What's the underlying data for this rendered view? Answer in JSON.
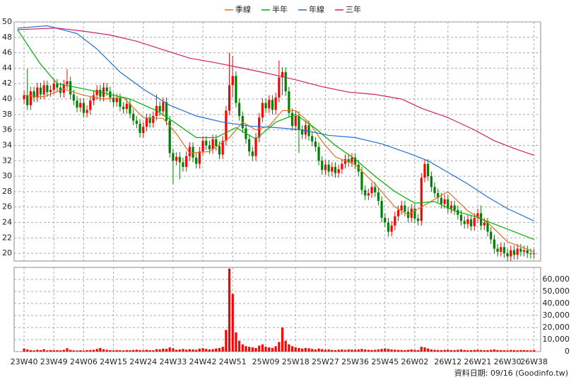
{
  "chart_data": {
    "type": "candlestick",
    "xlim": [
      -3,
      156
    ],
    "xticks": [
      {
        "value": 0,
        "label": "23W40"
      },
      {
        "value": 9,
        "label": "23W49"
      },
      {
        "value": 18,
        "label": "24W06"
      },
      {
        "value": 27,
        "label": "24W15"
      },
      {
        "value": 36,
        "label": "24W24"
      },
      {
        "value": 45,
        "label": "24W33"
      },
      {
        "value": 54,
        "label": "24W42"
      },
      {
        "value": 63,
        "label": "24W51"
      },
      {
        "value": 73,
        "label": "25W09"
      },
      {
        "value": 82,
        "label": "25W18"
      },
      {
        "value": 91,
        "label": "25W27"
      },
      {
        "value": 100,
        "label": "25W36"
      },
      {
        "value": 109,
        "label": "25W45"
      },
      {
        "value": 118,
        "label": "26W02"
      },
      {
        "value": 128,
        "label": "26W12"
      },
      {
        "value": 137,
        "label": "26W21"
      },
      {
        "value": 146,
        "label": "26W30"
      },
      {
        "value": 154,
        "label": "26W38"
      }
    ],
    "ylim": [
      19,
      50
    ],
    "yticks": [
      20,
      22,
      24,
      26,
      28,
      30,
      32,
      34,
      36,
      38,
      40,
      42,
      44,
      46,
      48,
      50
    ],
    "grid": true,
    "up_color": "#ff0000",
    "down_color": "#008000",
    "x": [
      0,
      1,
      2,
      3,
      4,
      5,
      6,
      7,
      8,
      9,
      10,
      11,
      12,
      13,
      14,
      15,
      16,
      17,
      18,
      19,
      20,
      21,
      22,
      23,
      24,
      25,
      26,
      27,
      28,
      29,
      30,
      31,
      32,
      33,
      34,
      35,
      36,
      37,
      38,
      39,
      40,
      41,
      42,
      43,
      44,
      45,
      46,
      47,
      48,
      49,
      50,
      51,
      52,
      53,
      54,
      55,
      56,
      57,
      58,
      59,
      60,
      61,
      62,
      63,
      64,
      65,
      66,
      67,
      68,
      69,
      70,
      71,
      72,
      73,
      74,
      75,
      76,
      77,
      78,
      79,
      80,
      81,
      82,
      83,
      84,
      85,
      86,
      87,
      88,
      89,
      90,
      91,
      92,
      93,
      94,
      95,
      96,
      97,
      98,
      99,
      100,
      101,
      102,
      103,
      104,
      105,
      106,
      107,
      108,
      109,
      110,
      111,
      112,
      113,
      114,
      115,
      116,
      117,
      118,
      119,
      120,
      121,
      122,
      123,
      124,
      125,
      126,
      127,
      128,
      129,
      130,
      131,
      132,
      133,
      134,
      135,
      136,
      137,
      138,
      139,
      140,
      141,
      142,
      143,
      144,
      145,
      146,
      147,
      148,
      149,
      150,
      151,
      152,
      153,
      154
    ],
    "open": [
      40.0,
      40.5,
      39.2,
      41.0,
      40.2,
      41.5,
      40.6,
      41.8,
      40.9,
      41.2,
      42.0,
      41.5,
      40.8,
      41.9,
      42.3,
      40.6,
      39.8,
      38.9,
      39.5,
      38.2,
      38.6,
      39.8,
      40.5,
      41.2,
      40.3,
      41.5,
      41.0,
      40.2,
      39.6,
      40.1,
      39.0,
      38.7,
      39.4,
      38.1,
      37.2,
      36.8,
      35.6,
      36.4,
      37.5,
      36.9,
      37.8,
      39.1,
      38.4,
      39.6,
      37.2,
      33.0,
      32.0,
      32.5,
      31.8,
      31.2,
      32.6,
      33.8,
      32.4,
      31.6,
      33.2,
      34.6,
      34.0,
      33.5,
      34.8,
      33.9,
      32.8,
      34.6,
      38.5,
      41.8,
      43.0,
      39.5,
      37.8,
      36.2,
      34.8,
      33.2,
      32.6,
      35.0,
      37.6,
      39.5,
      38.8,
      39.9,
      38.6,
      40.2,
      42.8,
      43.5,
      41.0,
      38.2,
      36.5,
      37.8,
      36.0,
      35.4,
      36.6,
      35.2,
      34.5,
      33.8,
      32.0,
      30.8,
      31.5,
      30.6,
      31.2,
      30.4,
      30.9,
      31.6,
      32.2,
      31.8,
      32.4,
      31.5,
      30.6,
      28.2,
      27.5,
      27.8,
      28.6,
      27.9,
      26.8,
      24.6,
      24.0,
      22.8,
      23.6,
      24.8,
      25.6,
      26.2,
      25.4,
      24.6,
      25.8,
      24.5,
      24.2,
      29.8,
      31.6,
      30.0,
      28.6,
      27.8,
      27.2,
      26.4,
      27.0,
      25.8,
      26.2,
      25.6,
      25.0,
      24.2,
      23.8,
      24.4,
      23.5,
      24.6,
      25.2,
      23.6,
      24.0,
      22.8,
      21.8,
      20.6,
      20.2,
      20.8,
      20.0,
      19.6,
      20.4,
      19.8,
      20.6,
      20.2,
      20.4,
      20.0,
      19.9
    ],
    "high": [
      41.1,
      43.9,
      41.6,
      41.6,
      42.1,
      42.1,
      42.4,
      42.4,
      41.8,
      42.6,
      42.6,
      42.1,
      42.5,
      43.9,
      42.9,
      41.2,
      40.4,
      40.1,
      40.1,
      39.2,
      40.4,
      41.1,
      41.8,
      41.8,
      42.1,
      42.1,
      41.6,
      40.8,
      40.7,
      40.7,
      39.6,
      40.0,
      40.0,
      38.7,
      37.8,
      37.4,
      37.0,
      38.1,
      38.1,
      38.4,
      40.6,
      39.7,
      40.2,
      40.2,
      37.8,
      33.6,
      33.1,
      33.1,
      32.4,
      33.2,
      34.4,
      34.4,
      33.0,
      33.8,
      35.2,
      35.2,
      34.6,
      35.4,
      35.4,
      34.5,
      35.2,
      39.1,
      46.0,
      45.6,
      43.6,
      40.1,
      38.4,
      36.8,
      35.4,
      33.8,
      35.6,
      38.2,
      40.1,
      40.1,
      40.5,
      40.5,
      40.8,
      45.0,
      44.1,
      44.1,
      41.6,
      38.8,
      38.4,
      38.4,
      36.6,
      37.2,
      37.2,
      35.8,
      35.1,
      34.4,
      32.6,
      32.1,
      32.1,
      31.8,
      31.8,
      31.5,
      32.2,
      32.8,
      32.8,
      33.0,
      33.0,
      32.1,
      31.2,
      28.8,
      28.4,
      29.2,
      29.2,
      28.5,
      27.4,
      25.2,
      24.6,
      24.2,
      25.4,
      26.2,
      26.8,
      26.8,
      26.0,
      26.4,
      26.4,
      25.1,
      30.4,
      32.2,
      32.2,
      30.6,
      29.2,
      28.4,
      27.8,
      27.6,
      27.6,
      26.8,
      26.8,
      26.2,
      25.6,
      24.8,
      25.0,
      25.0,
      25.2,
      25.8,
      26.2,
      24.6,
      24.6,
      23.4,
      22.4,
      21.2,
      21.4,
      21.4,
      20.6,
      21.0,
      21.0,
      21.2,
      21.2,
      21.0,
      21.0,
      20.6,
      20.6
    ],
    "low": [
      39.4,
      38.6,
      38.6,
      39.6,
      39.6,
      40.0,
      40.0,
      40.3,
      40.3,
      40.6,
      40.9,
      40.2,
      40.2,
      41.3,
      40.0,
      39.2,
      38.3,
      38.3,
      37.6,
      37.6,
      38.0,
      39.2,
      39.9,
      39.7,
      39.7,
      40.4,
      39.6,
      39.0,
      39.0,
      38.4,
      38.1,
      38.1,
      37.5,
      36.6,
      36.2,
      35.0,
      35.0,
      35.8,
      36.3,
      36.3,
      37.2,
      37.8,
      37.8,
      36.6,
      32.4,
      29.0,
      31.4,
      29.6,
      30.6,
      30.6,
      32.0,
      31.8,
      31.0,
      31.0,
      32.6,
      33.4,
      32.9,
      32.9,
      33.3,
      32.2,
      32.2,
      34.0,
      37.9,
      40.2,
      38.9,
      37.2,
      35.6,
      34.2,
      32.6,
      32.0,
      32.0,
      34.4,
      37.0,
      38.2,
      38.2,
      38.0,
      38.0,
      39.6,
      40.5,
      40.4,
      37.6,
      35.9,
      35.9,
      33.0,
      34.8,
      34.8,
      34.6,
      33.9,
      33.2,
      31.4,
      30.2,
      30.2,
      30.0,
      30.0,
      29.8,
      29.8,
      30.3,
      31.0,
      31.2,
      31.2,
      30.9,
      30.0,
      27.6,
      26.9,
      26.9,
      27.2,
      27.3,
      26.2,
      24.0,
      23.4,
      22.2,
      22.2,
      23.0,
      24.2,
      25.0,
      24.8,
      24.0,
      24.0,
      23.9,
      23.6,
      23.6,
      29.2,
      29.4,
      28.0,
      27.2,
      26.6,
      25.8,
      25.8,
      25.2,
      25.2,
      25.0,
      24.4,
      23.6,
      23.2,
      23.2,
      22.9,
      22.9,
      24.0,
      23.0,
      23.0,
      22.2,
      21.2,
      20.0,
      19.6,
      19.6,
      19.4,
      19.0,
      19.0,
      19.2,
      19.2,
      19.6,
      19.6,
      19.4,
      19.3,
      19.3
    ],
    "close": [
      40.5,
      39.2,
      41.0,
      40.2,
      41.5,
      40.6,
      41.8,
      40.9,
      41.2,
      42.0,
      41.5,
      40.8,
      41.9,
      42.3,
      40.6,
      39.8,
      38.9,
      39.5,
      38.2,
      38.6,
      39.8,
      40.5,
      41.2,
      40.3,
      41.5,
      41.0,
      40.2,
      39.6,
      40.1,
      39.0,
      38.7,
      39.4,
      38.1,
      37.2,
      36.8,
      35.6,
      36.4,
      37.5,
      36.9,
      37.8,
      39.1,
      38.4,
      39.6,
      37.2,
      33.0,
      32.0,
      32.5,
      31.8,
      31.2,
      32.6,
      33.8,
      32.4,
      31.6,
      33.2,
      34.6,
      34.0,
      33.5,
      34.8,
      33.9,
      32.8,
      34.6,
      38.5,
      41.8,
      43.0,
      39.5,
      37.8,
      36.2,
      34.8,
      33.2,
      32.6,
      35.0,
      37.6,
      39.5,
      38.8,
      39.9,
      38.6,
      40.2,
      42.8,
      43.5,
      41.0,
      38.2,
      36.5,
      37.8,
      36.0,
      35.4,
      36.6,
      35.2,
      34.5,
      33.8,
      32.0,
      30.8,
      31.5,
      30.6,
      31.2,
      30.4,
      30.9,
      31.6,
      32.2,
      31.8,
      32.4,
      31.5,
      30.6,
      28.2,
      27.5,
      27.8,
      28.6,
      27.9,
      26.8,
      24.6,
      24.0,
      22.8,
      23.6,
      24.8,
      25.6,
      26.2,
      25.4,
      24.6,
      25.8,
      24.5,
      24.2,
      29.8,
      31.6,
      30.0,
      28.6,
      27.8,
      27.2,
      26.4,
      27.0,
      25.8,
      26.2,
      25.6,
      25.0,
      24.2,
      23.8,
      24.4,
      23.5,
      24.6,
      25.2,
      23.6,
      24.0,
      22.8,
      21.8,
      20.6,
      20.2,
      20.8,
      20.0,
      19.6,
      20.4,
      19.8,
      20.6,
      20.2,
      20.4,
      20.0,
      19.9,
      20.0
    ],
    "series": [
      {
        "name": "季線",
        "color": "#e07020",
        "x": [
          0,
          6,
          12,
          18,
          24,
          30,
          36,
          42,
          46,
          50,
          56,
          62,
          66,
          70,
          74,
          78,
          82,
          86,
          90,
          94,
          100,
          106,
          112,
          116,
          122,
          128,
          134,
          140,
          146,
          154
        ],
        "values": [
          40.5,
          40.3,
          41.3,
          40.5,
          40.0,
          40.2,
          37.6,
          37.5,
          35.5,
          33.0,
          33.2,
          35.0,
          37.0,
          36.0,
          36.5,
          38.5,
          38.5,
          37.0,
          34.5,
          32.5,
          31.5,
          29.0,
          26.0,
          25.0,
          26.5,
          28.0,
          25.5,
          24.0,
          21.5,
          20.2
        ]
      },
      {
        "name": "半年",
        "color": "#00b000",
        "x": [
          -2,
          5,
          10,
          16,
          24,
          32,
          40,
          46,
          52,
          58,
          64,
          70,
          76,
          82,
          88,
          94,
          100,
          106,
          112,
          118,
          124,
          130,
          136,
          142,
          148,
          154
        ],
        "values": [
          49.0,
          44.5,
          42.0,
          41.5,
          40.8,
          40.0,
          38.5,
          36.8,
          35.0,
          35.0,
          36.3,
          34.8,
          37.0,
          38.0,
          36.2,
          34.0,
          32.2,
          30.0,
          28.0,
          26.5,
          26.7,
          25.5,
          24.8,
          23.8,
          22.8,
          21.8
        ]
      },
      {
        "name": "年線",
        "color": "#2070d0",
        "x": [
          -2,
          7,
          16,
          22,
          29,
          36,
          44,
          52,
          60,
          68,
          76,
          84,
          92,
          100,
          108,
          116,
          122,
          128,
          134,
          140,
          146,
          154
        ],
        "values": [
          49.2,
          49.5,
          48.5,
          46.5,
          43.5,
          41.3,
          39.2,
          37.8,
          37.0,
          36.5,
          36.3,
          36.0,
          35.3,
          35.0,
          34.2,
          33.0,
          32.0,
          30.5,
          29.0,
          27.3,
          25.8,
          24.2
        ]
      },
      {
        "name": "三年",
        "color": "#d0206a",
        "x": [
          -2,
          10,
          18,
          26,
          34,
          42,
          50,
          58,
          66,
          74,
          82,
          90,
          98,
          106,
          114,
          120,
          128,
          136,
          142,
          148,
          154
        ],
        "values": [
          49.0,
          49.2,
          48.8,
          48.3,
          47.5,
          46.4,
          45.3,
          44.7,
          44.0,
          43.3,
          42.5,
          41.6,
          40.9,
          40.6,
          40.0,
          38.8,
          37.6,
          36.0,
          34.6,
          33.6,
          32.7
        ]
      }
    ],
    "volume": {
      "color": "#ff0000",
      "ylim": [
        0,
        70000
      ],
      "yticks": [
        0,
        {
          "value": 10000,
          "label": "10,000"
        },
        {
          "value": 20000,
          "label": "20,000"
        },
        {
          "value": 30000,
          "label": "30,000"
        },
        {
          "value": 40000,
          "label": "40,000"
        },
        {
          "value": 50000,
          "label": "50,000"
        },
        {
          "value": 60000,
          "label": "60,000"
        }
      ],
      "values": [
        2500,
        1800,
        1200,
        1000,
        1500,
        1200,
        2000,
        1000,
        1300,
        1100,
        1200,
        1000,
        1500,
        2800,
        1400,
        1000,
        900,
        1100,
        800,
        1200,
        1300,
        1500,
        2200,
        3000,
        2000,
        1500,
        1200,
        1000,
        1300,
        1100,
        1000,
        1200,
        1100,
        1400,
        1600,
        1300,
        1100,
        1500,
        1200,
        1100,
        2000,
        1800,
        2400,
        2200,
        3500,
        2800,
        1500,
        1800,
        2200,
        1600,
        2000,
        1800,
        1500,
        2500,
        2800,
        2200,
        1800,
        2000,
        2600,
        3000,
        4000,
        18000,
        69000,
        48000,
        16000,
        9000,
        6000,
        4500,
        4000,
        3500,
        3000,
        5000,
        6000,
        4000,
        3500,
        3000,
        4500,
        8000,
        20000,
        9000,
        6000,
        4500,
        3500,
        3000,
        2500,
        3000,
        2800,
        2200,
        1800,
        2500,
        2000,
        1500,
        1800,
        1300,
        1200,
        1500,
        1700,
        1400,
        1800,
        1600,
        1500,
        1800,
        2200,
        1700,
        1400,
        1300,
        1500,
        1800,
        2200,
        2600,
        2200,
        1800,
        1600,
        1400,
        1300,
        1200,
        1500,
        1800,
        1400,
        1200,
        4000,
        3500,
        2500,
        1800,
        1500,
        1300,
        1200,
        1400,
        1500,
        1300,
        1200,
        1500,
        1800,
        1300,
        1100,
        1200,
        1400,
        1500,
        1300,
        1100,
        1200,
        1500,
        1800,
        1300,
        1200,
        1100,
        1000,
        1400,
        1200,
        1100,
        1300,
        1200,
        1100,
        1000,
        1200
      ]
    },
    "footer": "資料日期: 09/16 (Goodinfo.tw)"
  }
}
